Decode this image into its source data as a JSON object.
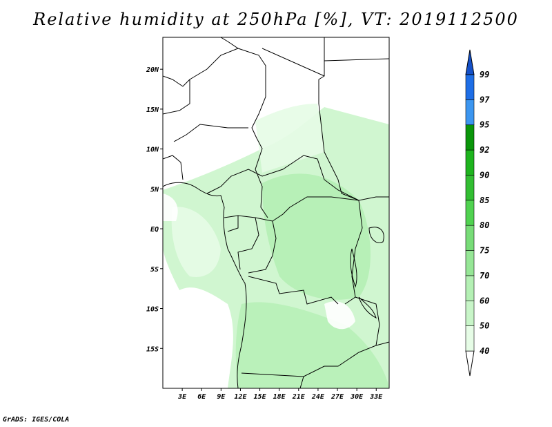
{
  "title": "Relative humidity at 250hPa [%], VT: 2019112500",
  "footer": "GrADS: IGES/COLA",
  "map": {
    "lon_range": [
      0,
      35
    ],
    "lat_range": [
      -20,
      24
    ],
    "lat_ticks": [
      {
        "value": 20,
        "label": "20N"
      },
      {
        "value": 15,
        "label": "15N"
      },
      {
        "value": 10,
        "label": "10N"
      },
      {
        "value": 5,
        "label": "5N"
      },
      {
        "value": 0,
        "label": "EQ"
      },
      {
        "value": -5,
        "label": "5S"
      },
      {
        "value": -10,
        "label": "10S"
      },
      {
        "value": -15,
        "label": "15S"
      }
    ],
    "lon_ticks": [
      {
        "value": 3,
        "label": "3E"
      },
      {
        "value": 6,
        "label": "6E"
      },
      {
        "value": 9,
        "label": "9E"
      },
      {
        "value": 12,
        "label": "12E"
      },
      {
        "value": 15,
        "label": "15E"
      },
      {
        "value": 18,
        "label": "18E"
      },
      {
        "value": 21,
        "label": "21E"
      },
      {
        "value": 24,
        "label": "24E"
      },
      {
        "value": 27,
        "label": "27E"
      },
      {
        "value": 30,
        "label": "30E"
      },
      {
        "value": 33,
        "label": "33E"
      }
    ]
  },
  "colorbar": {
    "levels": [
      {
        "label": "40",
        "color": "#ffffff"
      },
      {
        "label": "50",
        "color": "#e6fce6"
      },
      {
        "label": "60",
        "color": "#c8f5c8"
      },
      {
        "label": "70",
        "color": "#b4f0b4"
      },
      {
        "label": "75",
        "color": "#96e696"
      },
      {
        "label": "80",
        "color": "#78dc78"
      },
      {
        "label": "85",
        "color": "#50d250"
      },
      {
        "label": "90",
        "color": "#32be32"
      },
      {
        "label": "92",
        "color": "#1eb41e"
      },
      {
        "label": "95",
        "color": "#0a960a"
      },
      {
        "label": "97",
        "color": "#3c96f0"
      },
      {
        "label": "99",
        "color": "#1e6ee6"
      }
    ],
    "over_color": "#1450c8",
    "under_color": "#ffffff"
  }
}
